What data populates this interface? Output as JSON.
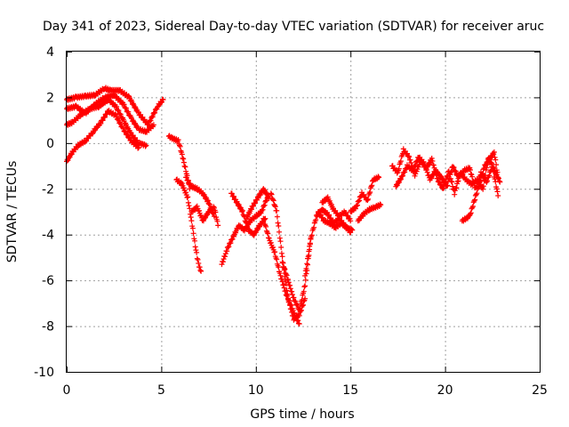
{
  "chart_data": {
    "type": "scatter",
    "title": "Day 341 of 2023, Sidereal Day-to-day VTEC variation (SDTVAR) for receiver aruc",
    "xlabel": "GPS time / hours",
    "ylabel": "SDTVAR / TECUs",
    "xlim": [
      0,
      25
    ],
    "ylim": [
      -10,
      4
    ],
    "xticks": [
      "0",
      "5",
      "10",
      "15",
      "20",
      "25"
    ],
    "yticks": [
      "4",
      "2",
      "0",
      "-2",
      "-4",
      "-6",
      "-8",
      "-10"
    ],
    "grid": true,
    "marker": "+",
    "series": [
      {
        "name": "SDTVAR",
        "color": "#ff0000",
        "bands": [
          {
            "x": [
              0,
              0.5,
              1.0,
              1.5,
              2.0,
              2.3,
              2.8,
              3.3,
              3.8,
              4.3,
              4.8,
              5.1
            ],
            "y": [
              1.9,
              2.0,
              2.05,
              2.1,
              2.4,
              2.3,
              2.3,
              2.0,
              1.3,
              0.8,
              1.6,
              1.9
            ]
          },
          {
            "x": [
              0,
              0.5,
              1.0,
              1.5,
              2.0,
              2.5,
              3.0,
              3.4,
              3.8,
              4.2,
              4.6
            ],
            "y": [
              1.5,
              1.6,
              1.3,
              1.7,
              2.0,
              2.1,
              1.7,
              1.1,
              0.6,
              0.5,
              0.8
            ]
          },
          {
            "x": [
              0,
              0.3,
              0.7,
              1.2,
              1.7,
              2.2,
              2.6,
              3.0,
              3.4,
              3.8,
              4.2
            ],
            "y": [
              0.8,
              0.9,
              1.2,
              1.5,
              1.6,
              1.9,
              1.6,
              1.0,
              0.4,
              0.0,
              -0.1
            ]
          },
          {
            "x": [
              0,
              0.3,
              0.6,
              1.0,
              1.4,
              1.8,
              2.2,
              2.6,
              3.0,
              3.4,
              3.8
            ],
            "y": [
              -0.8,
              -0.4,
              -0.1,
              0.1,
              0.5,
              0.9,
              1.4,
              1.2,
              0.6,
              0.1,
              -0.2
            ]
          },
          {
            "x": [
              5.4,
              5.6,
              5.9,
              6.1,
              6.3,
              6.5
            ],
            "y": [
              0.3,
              0.2,
              0.1,
              -0.5,
              -1.2,
              -2.0
            ]
          },
          {
            "x": [
              5.8,
              6.1,
              6.4,
              6.6,
              6.8,
              6.9,
              7.0,
              7.1
            ],
            "y": [
              -1.6,
              -1.8,
              -2.4,
              -3.4,
              -4.5,
              -5.0,
              -5.4,
              -5.6
            ]
          },
          {
            "x": [
              6.3,
              6.6,
              6.9,
              7.2,
              7.5,
              7.8
            ],
            "y": [
              -1.5,
              -1.9,
              -2.0,
              -2.2,
              -2.6,
              -3.2
            ]
          },
          {
            "x": [
              6.6,
              6.9,
              7.2,
              7.5,
              7.8,
              8.0
            ],
            "y": [
              -3.0,
              -2.8,
              -3.4,
              -3.0,
              -2.8,
              -3.6
            ]
          },
          {
            "x": [
              8.2,
              8.5,
              8.8,
              9.1,
              9.4,
              9.7,
              10.0,
              10.3,
              10.6
            ],
            "y": [
              -5.3,
              -4.6,
              -4.1,
              -3.6,
              -3.8,
              -3.4,
              -3.2,
              -3.0,
              -2.4
            ]
          },
          {
            "x": [
              8.7,
              9.0,
              9.3,
              9.6,
              9.9,
              10.2,
              10.5
            ],
            "y": [
              -2.2,
              -2.6,
              -3.0,
              -3.8,
              -4.0,
              -3.6,
              -3.3
            ]
          },
          {
            "x": [
              9.5,
              9.8,
              10.1,
              10.4,
              10.7
            ],
            "y": [
              -3.3,
              -2.8,
              -2.4,
              -2.0,
              -2.4
            ]
          },
          {
            "x": [
              10.4,
              10.7,
              11.0,
              11.3,
              11.6,
              11.9,
              12.1,
              12.3
            ],
            "y": [
              -3.3,
              -4.2,
              -4.8,
              -5.8,
              -6.6,
              -7.2,
              -7.6,
              -7.9
            ]
          },
          {
            "x": [
              10.8,
              11.1,
              11.4,
              11.7,
              12.0,
              12.3,
              12.6
            ],
            "y": [
              -2.2,
              -3.0,
              -5.0,
              -6.8,
              -7.7,
              -7.5,
              -6.8
            ]
          },
          {
            "x": [
              11.4,
              11.7,
              12.0,
              12.3,
              12.6,
              12.9
            ],
            "y": [
              -5.2,
              -6.0,
              -6.8,
              -7.3,
              -6.2,
              -4.2
            ]
          },
          {
            "x": [
              12.6,
              12.9,
              13.2,
              13.5,
              13.8,
              14.1,
              14.4,
              14.7,
              15.0
            ],
            "y": [
              -5.8,
              -4.2,
              -3.2,
              -2.9,
              -3.1,
              -3.5,
              -3.3,
              -3.6,
              -3.9
            ]
          },
          {
            "x": [
              13.3,
              13.6,
              13.9,
              14.2,
              14.5,
              14.8,
              15.1
            ],
            "y": [
              -3.0,
              -3.4,
              -3.5,
              -3.7,
              -3.5,
              -3.7,
              -3.8
            ]
          },
          {
            "x": [
              13.5,
              13.8,
              14.1,
              14.4,
              14.7,
              15.0
            ],
            "y": [
              -2.6,
              -2.4,
              -2.9,
              -3.2,
              -3.0,
              -3.4
            ]
          },
          {
            "x": [
              15.0,
              15.3,
              15.6,
              15.9,
              16.2,
              16.5
            ],
            "y": [
              -3.0,
              -2.8,
              -2.2,
              -2.5,
              -1.6,
              -1.5
            ]
          },
          {
            "x": [
              15.4,
              15.7,
              16.0,
              16.3,
              16.6
            ],
            "y": [
              -3.4,
              -3.1,
              -2.9,
              -2.8,
              -2.7
            ]
          },
          {
            "x": [
              17.2,
              17.5,
              17.8,
              18.1,
              18.4,
              18.7,
              19.0,
              19.3,
              19.6,
              19.9,
              20.2,
              20.5,
              20.8,
              21.1,
              21.4,
              21.7,
              22.0,
              22.3,
              22.6,
              22.9
            ],
            "y": [
              -1.0,
              -1.3,
              -0.3,
              -0.6,
              -1.4,
              -0.8,
              -1.1,
              -0.7,
              -1.6,
              -2.0,
              -1.2,
              -2.2,
              -1.3,
              -1.6,
              -1.8,
              -1.6,
              -2.0,
              -0.6,
              -1.2,
              -1.7
            ]
          },
          {
            "x": [
              17.4,
              17.7,
              18.0,
              18.3,
              18.6,
              18.9,
              19.2,
              19.5,
              19.8,
              20.1,
              20.4,
              20.7,
              21.0,
              21.3,
              21.6,
              21.9,
              22.2,
              22.5,
              22.8
            ],
            "y": [
              -1.9,
              -1.5,
              -1.0,
              -1.2,
              -0.6,
              -0.9,
              -1.6,
              -1.2,
              -1.5,
              -1.9,
              -1.0,
              -1.5,
              -1.2,
              -1.1,
              -2.0,
              -1.3,
              -1.7,
              -1.0,
              -2.3
            ]
          },
          {
            "x": [
              20.9,
              21.3,
              22.1,
              22.6,
              22.8
            ],
            "y": [
              -3.4,
              -3.2,
              -1.0,
              -0.4,
              -1.5
            ]
          }
        ]
      }
    ]
  }
}
